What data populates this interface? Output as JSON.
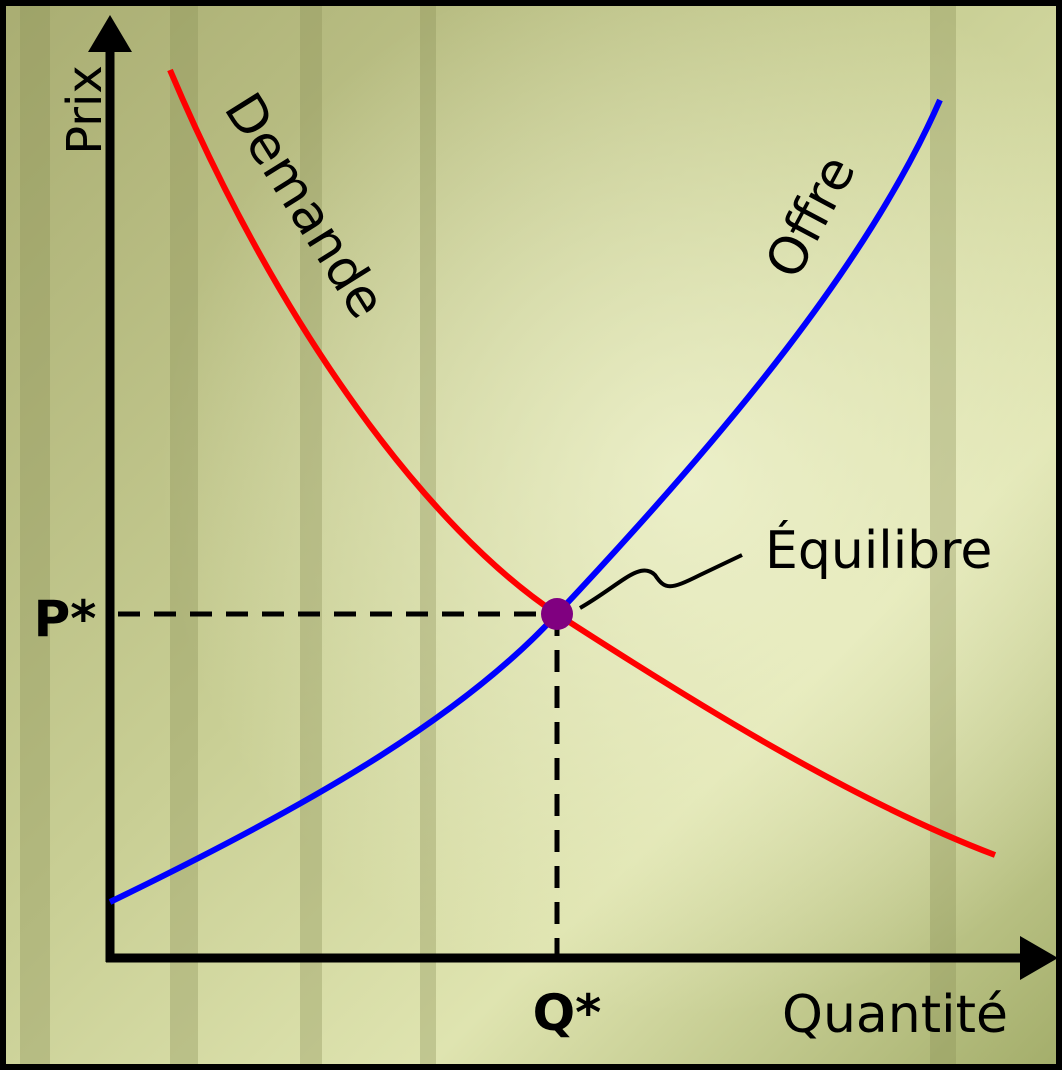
{
  "axes": {
    "y_label": "Prix",
    "x_label": "Quantité",
    "p_star": "P*",
    "q_star": "Q*"
  },
  "curves": {
    "demand": "Demande",
    "supply": "Offre"
  },
  "annotation": "Équilibre"
}
